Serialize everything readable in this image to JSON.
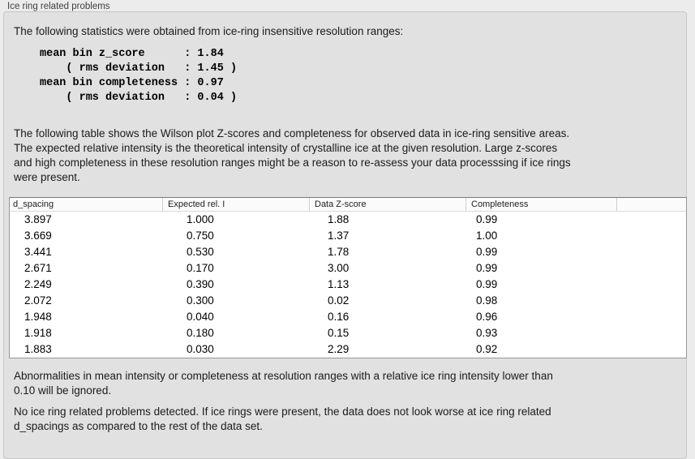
{
  "group": {
    "title": "Ice ring related problems"
  },
  "panel": {
    "intro": "The following statistics were obtained from ice-ring insensitive resolution ranges:",
    "stats_block": "mean bin z_score      : 1.84\n    ( rms deviation   : 1.45 )\nmean bin completeness : 0.97\n    ( rms deviation   : 0.04 )",
    "stats": {
      "mean_bin_z_score": "1.84",
      "z_score_rms_deviation": "1.45",
      "mean_bin_completeness": "0.97",
      "completeness_rms_deviation": "0.04"
    },
    "table_description": "The following table shows the Wilson plot Z-scores and completeness for observed data in ice-ring sensitive areas.\nThe expected relative intensity is the theoretical intensity of crystalline ice at the given resolution. Large z-scores\nand high completeness in these resolution ranges might be a reason to re-assess your data processsing if ice rings\nwere present.",
    "note_ignore": "Abnormalities in mean intensity or completeness at resolution ranges with a relative ice ring intensity lower than\n0.10 will be ignored.",
    "conclusion": "No ice ring related problems detected. If ice rings were present, the data does not look worse at ice ring related\nd_spacings as compared to the rest of the data set."
  },
  "table": {
    "columns": [
      "d_spacing",
      "Expected rel. I",
      "Data Z-score",
      "Completeness",
      ""
    ],
    "rows": [
      [
        "3.897",
        "1.000",
        "1.88",
        "0.99"
      ],
      [
        "3.669",
        "0.750",
        "1.37",
        "1.00"
      ],
      [
        "3.441",
        "0.530",
        "1.78",
        "0.99"
      ],
      [
        "2.671",
        "0.170",
        "3.00",
        "0.99"
      ],
      [
        "2.249",
        "0.390",
        "1.13",
        "0.99"
      ],
      [
        "2.072",
        "0.300",
        "0.02",
        "0.98"
      ],
      [
        "1.948",
        "0.040",
        "0.16",
        "0.96"
      ],
      [
        "1.918",
        "0.180",
        "0.15",
        "0.93"
      ],
      [
        "1.883",
        "0.030",
        "2.29",
        "0.92"
      ]
    ]
  },
  "colors": {
    "outer_bg": "#ececec",
    "panel_bg": "#e1e1e1",
    "panel_border": "#c6c6c6",
    "table_bg": "#ffffff",
    "table_border": "#979797",
    "text": "#1b1b1b"
  }
}
